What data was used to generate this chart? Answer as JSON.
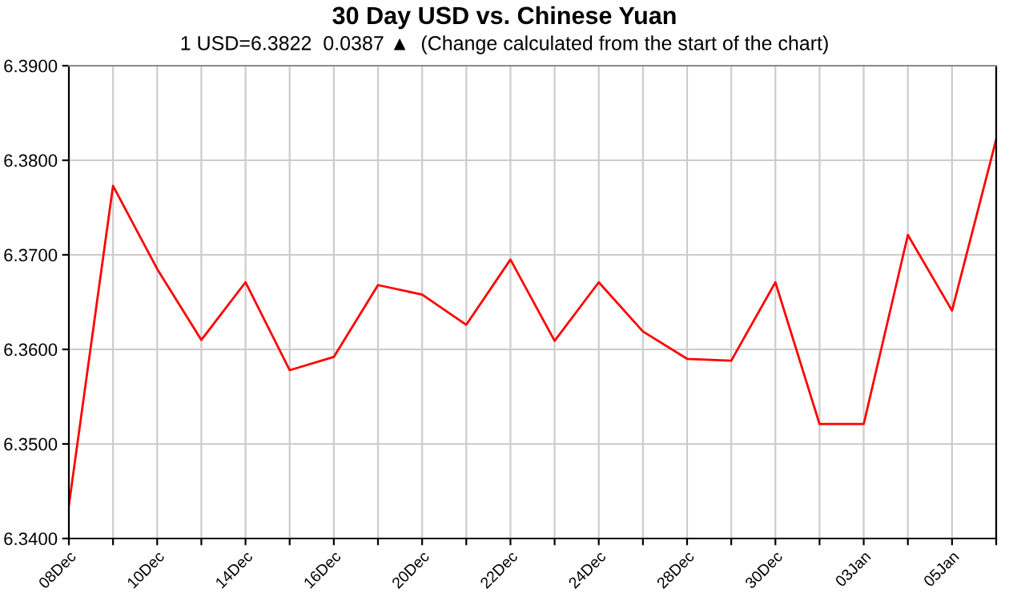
{
  "chart_data": {
    "type": "line",
    "title": "30 Day USD vs. Chinese Yuan",
    "subtitle": "1 USD=6.3822  0.0387 ▲  (Change calculated from the start of the chart)",
    "categories": [
      "08Dec",
      null,
      "10Dec",
      null,
      "14Dec",
      null,
      "16Dec",
      null,
      "20Dec",
      null,
      "22Dec",
      null,
      "24Dec",
      null,
      "28Dec",
      null,
      "30Dec",
      null,
      "03Jan",
      null,
      "05Jan",
      null
    ],
    "series": [
      {
        "color": "#ff0000",
        "values": [
          6.3435,
          6.3773,
          6.3685,
          6.361,
          6.3671,
          6.3578,
          6.3592,
          6.3668,
          6.3658,
          6.3626,
          6.3695,
          6.3609,
          6.3671,
          6.3619,
          6.359,
          6.3588,
          6.3671,
          6.3521,
          6.3521,
          6.3721,
          6.3641,
          6.3822
        ]
      }
    ],
    "ylim": [
      6.34,
      6.39
    ],
    "yticks": [
      {
        "value": 6.34,
        "label": "6.3400"
      },
      {
        "value": 6.35,
        "label": "6.3500"
      },
      {
        "value": 6.36,
        "label": "6.3600"
      },
      {
        "value": 6.37,
        "label": "6.3700"
      },
      {
        "value": 6.38,
        "label": "6.3800"
      },
      {
        "value": 6.39,
        "label": "6.3900"
      }
    ],
    "grid": true,
    "legend": false,
    "marker": "none",
    "line_style": "solid"
  }
}
